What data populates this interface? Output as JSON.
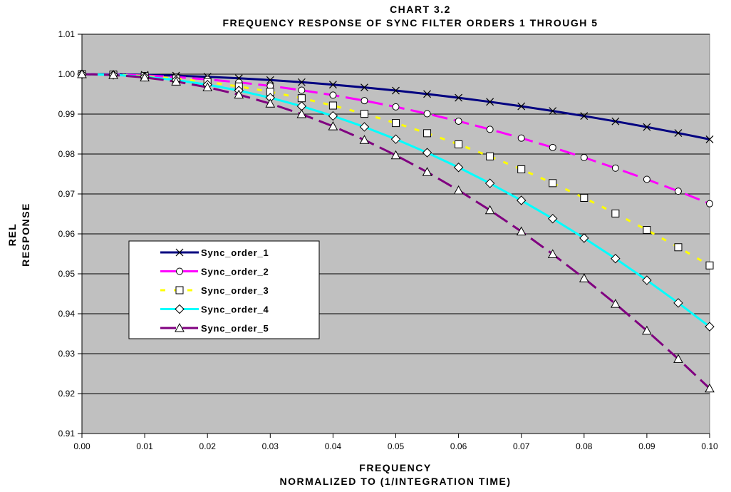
{
  "chart_data": {
    "type": "line",
    "title": "CHART 3.2",
    "subtitle": "FREQUENCY RESPONSE OF SYNC FILTER ORDERS 1 THROUGH 5",
    "xlabel": "FREQUENCY",
    "xlabel2": "NORMALIZED TO (1/INTEGRATION TIME)",
    "ylabel": "REL",
    "ylabel2": "RESPONSE",
    "xlim": [
      0.0,
      0.1
    ],
    "ylim": [
      0.91,
      1.01
    ],
    "grid": "horizontal",
    "legend_position": "center-left",
    "x_ticks": [
      "0.00",
      "0.01",
      "0.02",
      "0.03",
      "0.04",
      "0.05",
      "0.06",
      "0.07",
      "0.08",
      "0.09",
      "0.10"
    ],
    "y_ticks": [
      "0.91",
      "0.92",
      "0.93",
      "0.94",
      "0.95",
      "0.96",
      "0.97",
      "0.98",
      "0.99",
      "1.00",
      "1.01"
    ],
    "x": [
      0.0,
      0.005,
      0.01,
      0.015,
      0.02,
      0.025,
      0.03,
      0.035,
      0.04,
      0.045,
      0.05,
      0.055,
      0.06,
      0.065,
      0.07,
      0.075,
      0.08,
      0.085,
      0.09,
      0.095,
      0.1
    ],
    "series": [
      {
        "name": "Sync_order_1",
        "color": "#000080",
        "dash": "solid",
        "marker": "x",
        "values": [
          1.0,
          0.99996,
          0.99984,
          0.99963,
          0.99934,
          0.99897,
          0.99852,
          0.99799,
          0.99737,
          0.99667,
          0.99589,
          0.99503,
          0.99409,
          0.99307,
          0.99196,
          0.99078,
          0.98952,
          0.98818,
          0.98676,
          0.98526,
          0.98368
        ]
      },
      {
        "name": "Sync_order_2",
        "color": "#ff00ff",
        "dash": "dashed",
        "marker": "circle",
        "values": [
          1.0,
          0.99992,
          0.99967,
          0.99926,
          0.99868,
          0.99795,
          0.99705,
          0.99598,
          0.99475,
          0.99336,
          0.99181,
          0.99009,
          0.98822,
          0.98618,
          0.98399,
          0.98164,
          0.97913,
          0.97647,
          0.97366,
          0.97069,
          0.96756
        ]
      },
      {
        "name": "Sync_order_3",
        "color": "#ffff00",
        "dash": "dotted",
        "marker": "square",
        "values": [
          1.0,
          0.99988,
          0.99951,
          0.9989,
          0.99803,
          0.99692,
          0.99557,
          0.99398,
          0.99214,
          0.99007,
          0.98775,
          0.98521,
          0.98242,
          0.97941,
          0.97617,
          0.97271,
          0.96902,
          0.96511,
          0.96098,
          0.95665,
          0.9521
        ]
      },
      {
        "name": "Sync_order_4",
        "color": "#00ffff",
        "dash": "solid",
        "marker": "diamond",
        "values": [
          1.0,
          0.99984,
          0.99934,
          0.99852,
          0.99737,
          0.9959,
          0.9941,
          0.99198,
          0.98954,
          0.98679,
          0.98372,
          0.98034,
          0.97665,
          0.97267,
          0.96839,
          0.96381,
          0.95895,
          0.95381,
          0.9484,
          0.94271,
          0.93676
        ]
      },
      {
        "name": "Sync_order_5",
        "color": "#800080",
        "dash": "dashed",
        "marker": "triangle",
        "values": [
          1.0,
          0.9998,
          0.99918,
          0.99815,
          0.99672,
          0.99488,
          0.99263,
          0.98999,
          0.98695,
          0.98352,
          0.97969,
          0.97549,
          0.9709,
          0.96594,
          0.96061,
          0.95492,
          0.94888,
          0.94248,
          0.93575,
          0.92868,
          0.92129
        ]
      }
    ]
  }
}
